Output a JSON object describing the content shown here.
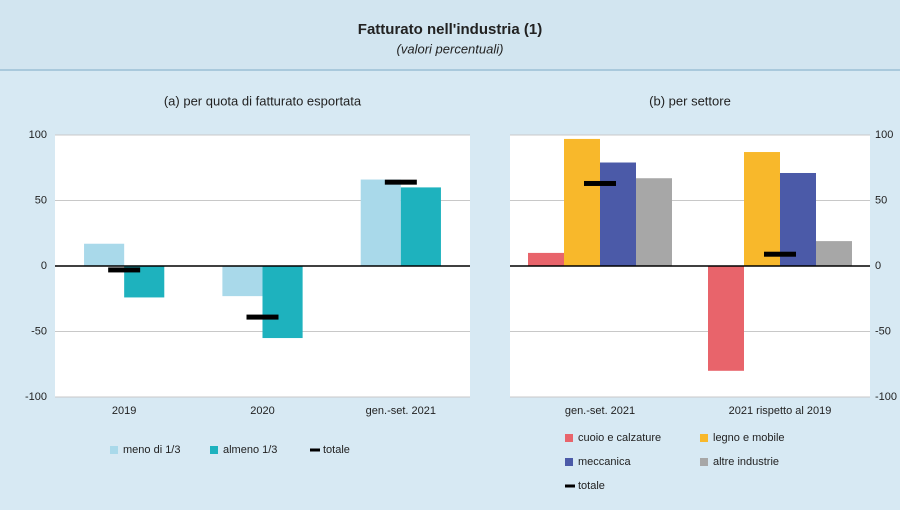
{
  "title": "Fatturato nell'industria (1)",
  "subtitle": "(valori percentuali)",
  "chart_data": [
    {
      "type": "bar",
      "title": "(a) per quota di fatturato esportata",
      "categories": [
        "2019",
        "2020",
        "gen.-set. 2021"
      ],
      "series": [
        {
          "name": "meno di 1/3",
          "color": "#a9d9ea",
          "mark": "bar",
          "values": [
            17,
            -23,
            66
          ]
        },
        {
          "name": "almeno 1/3",
          "color": "#1eb2be",
          "mark": "bar",
          "values": [
            -24,
            -55,
            60
          ]
        },
        {
          "name": "totale",
          "color": "#000000",
          "mark": "dash",
          "values": [
            -3,
            -39,
            64
          ]
        }
      ],
      "ylim": [
        -100,
        100
      ],
      "yticks": [
        -100,
        -50,
        0,
        50,
        100
      ],
      "yaxis_side": "left",
      "grid": true
    },
    {
      "type": "bar",
      "title": "(b) per settore",
      "categories": [
        "gen.-set. 2021",
        "2021 rispetto al 2019"
      ],
      "series": [
        {
          "name": "cuoio e calzature",
          "color": "#e8646b",
          "mark": "bar",
          "values": [
            10,
            -80
          ]
        },
        {
          "name": "legno e mobile",
          "color": "#f8b82b",
          "mark": "bar",
          "values": [
            97,
            87
          ]
        },
        {
          "name": "meccanica",
          "color": "#4b5aa8",
          "mark": "bar",
          "values": [
            79,
            71
          ]
        },
        {
          "name": "altre industrie",
          "color": "#a7a7a7",
          "mark": "bar",
          "values": [
            67,
            19
          ]
        },
        {
          "name": "totale",
          "color": "#000000",
          "mark": "dash",
          "values": [
            63,
            9
          ]
        }
      ],
      "ylim": [
        -100,
        100
      ],
      "yticks": [
        -100,
        -50,
        0,
        50,
        100
      ],
      "yaxis_side": "right",
      "grid": true
    }
  ]
}
